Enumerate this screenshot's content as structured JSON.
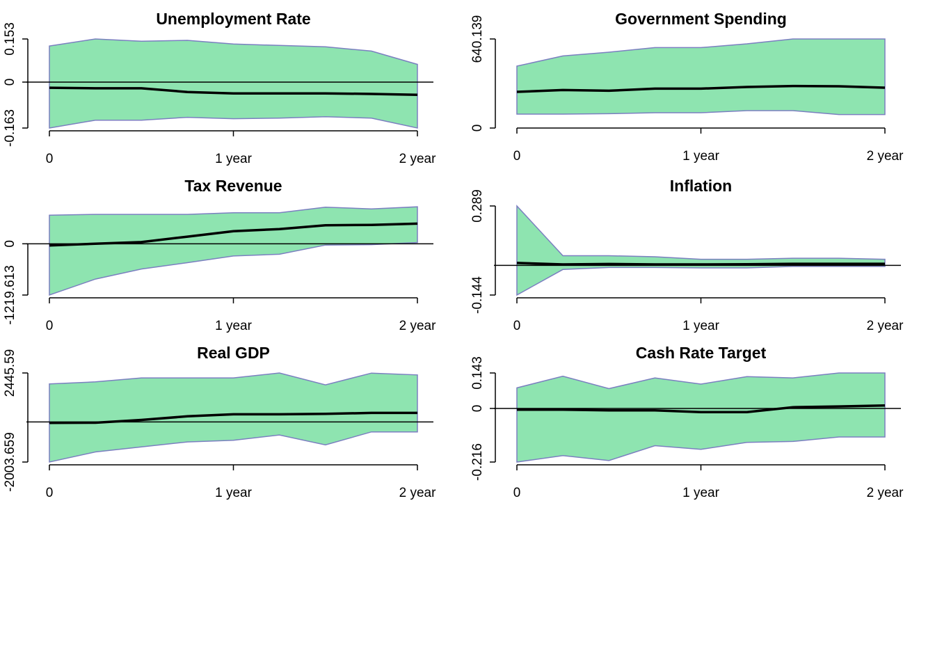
{
  "style": {
    "band_fill": "#8ee4b0",
    "band_stroke": "#7b7fc0",
    "line_color": "#000000",
    "axis_color": "#000000"
  },
  "chart_data": [
    {
      "type": "area",
      "title": "Unemployment Rate",
      "x_tick_labels": [
        "0",
        "1 year",
        "2 year"
      ],
      "x": [
        0,
        1,
        2,
        3,
        4,
        5,
        6,
        7,
        8
      ],
      "xlim": [
        0,
        8
      ],
      "y_ticks": [
        -0.163,
        0,
        0.153
      ],
      "y_tick_labels": [
        "-0.163",
        "0",
        "0.153"
      ],
      "ylim": [
        -0.163,
        0.153
      ],
      "zero_line": true,
      "median": [
        -0.02,
        -0.022,
        -0.022,
        -0.035,
        -0.04,
        -0.04,
        -0.04,
        -0.042,
        -0.045
      ],
      "lower": [
        -0.163,
        -0.135,
        -0.135,
        -0.125,
        -0.13,
        -0.128,
        -0.123,
        -0.128,
        -0.163
      ],
      "upper": [
        0.128,
        0.153,
        0.145,
        0.148,
        0.135,
        0.13,
        0.125,
        0.11,
        0.063
      ]
    },
    {
      "type": "area",
      "title": "Government Spending",
      "x_tick_labels": [
        "0",
        "1 year",
        "2 year"
      ],
      "x": [
        0,
        1,
        2,
        3,
        4,
        5,
        6,
        7,
        8
      ],
      "xlim": [
        0,
        8
      ],
      "y_ticks": [
        0,
        640.139
      ],
      "y_tick_labels": [
        "0",
        "640.139"
      ],
      "ylim": [
        0,
        640.139
      ],
      "zero_line": false,
      "median": [
        260,
        273,
        268,
        283,
        283,
        295,
        302,
        300,
        290
      ],
      "lower": [
        100,
        100,
        103,
        110,
        110,
        125,
        125,
        97,
        97
      ],
      "upper": [
        445,
        518,
        545,
        578,
        578,
        605,
        640,
        640,
        640
      ]
    },
    {
      "type": "area",
      "title": "Tax Revenue",
      "x_tick_labels": [
        "0",
        "1 year",
        "2 year"
      ],
      "x": [
        0,
        1,
        2,
        3,
        4,
        5,
        6,
        7,
        8
      ],
      "xlim": [
        0,
        8
      ],
      "y_ticks": [
        -1219.613,
        0
      ],
      "y_tick_labels": [
        "-1219.613",
        "0"
      ],
      "ylim": [
        -1219.613,
        900
      ],
      "zero_line": true,
      "median": [
        -40,
        0,
        40,
        170,
        300,
        350,
        440,
        450,
        480
      ],
      "lower": [
        -1219,
        -840,
        -600,
        -450,
        -290,
        -250,
        -30,
        -20,
        30
      ],
      "upper": [
        680,
        700,
        700,
        700,
        740,
        740,
        870,
        830,
        880
      ]
    },
    {
      "type": "area",
      "title": "Inflation",
      "x_tick_labels": [
        "0",
        "1 year",
        "2 year"
      ],
      "x": [
        0,
        1,
        2,
        3,
        4,
        5,
        6,
        7,
        8
      ],
      "xlim": [
        0,
        8
      ],
      "y_ticks": [
        -0.144,
        0.289
      ],
      "y_tick_labels": [
        "-0.144",
        "0.289"
      ],
      "ylim": [
        -0.144,
        0.289
      ],
      "zero_line": true,
      "median": [
        0.012,
        0.005,
        0.007,
        0.005,
        0.005,
        0.006,
        0.008,
        0.008,
        0.008
      ],
      "lower": [
        -0.144,
        -0.02,
        -0.01,
        -0.01,
        -0.012,
        -0.012,
        -0.005,
        -0.005,
        -0.005
      ],
      "upper": [
        0.289,
        0.047,
        0.047,
        0.042,
        0.03,
        0.03,
        0.035,
        0.035,
        0.03
      ]
    },
    {
      "type": "area",
      "title": "Real GDP",
      "x_tick_labels": [
        "0",
        "1 year",
        "2 year"
      ],
      "x": [
        0,
        1,
        2,
        3,
        4,
        5,
        6,
        7,
        8
      ],
      "xlim": [
        0,
        8
      ],
      "y_ticks": [
        -2003.659,
        2445.59
      ],
      "y_tick_labels": [
        "-2003.659",
        "2445.59"
      ],
      "ylim": [
        -2003.659,
        2445.59
      ],
      "zero_line": true,
      "median": [
        -50,
        -40,
        100,
        280,
        380,
        380,
        400,
        450,
        450
      ],
      "lower": [
        -2003,
        -1500,
        -1250,
        -1000,
        -920,
        -650,
        -1150,
        -500,
        -500
      ],
      "upper": [
        1900,
        2000,
        2200,
        2200,
        2200,
        2445,
        1850,
        2440,
        2350
      ]
    },
    {
      "type": "area",
      "title": "Cash Rate Target",
      "x_tick_labels": [
        "0",
        "1 year",
        "2 year"
      ],
      "x": [
        0,
        1,
        2,
        3,
        4,
        5,
        6,
        7,
        8
      ],
      "xlim": [
        0,
        8
      ],
      "y_ticks": [
        -0.216,
        0,
        0.143
      ],
      "y_tick_labels": [
        "-0.216",
        "0",
        "0.143"
      ],
      "ylim": [
        -0.216,
        0.143
      ],
      "zero_line": true,
      "median": [
        -0.005,
        -0.005,
        -0.008,
        -0.008,
        -0.015,
        -0.015,
        0.005,
        0.008,
        0.012
      ],
      "lower": [
        -0.216,
        -0.19,
        -0.21,
        -0.15,
        -0.165,
        -0.137,
        -0.133,
        -0.115,
        -0.115
      ],
      "upper": [
        0.083,
        0.13,
        0.08,
        0.123,
        0.098,
        0.128,
        0.123,
        0.143,
        0.143
      ]
    }
  ]
}
